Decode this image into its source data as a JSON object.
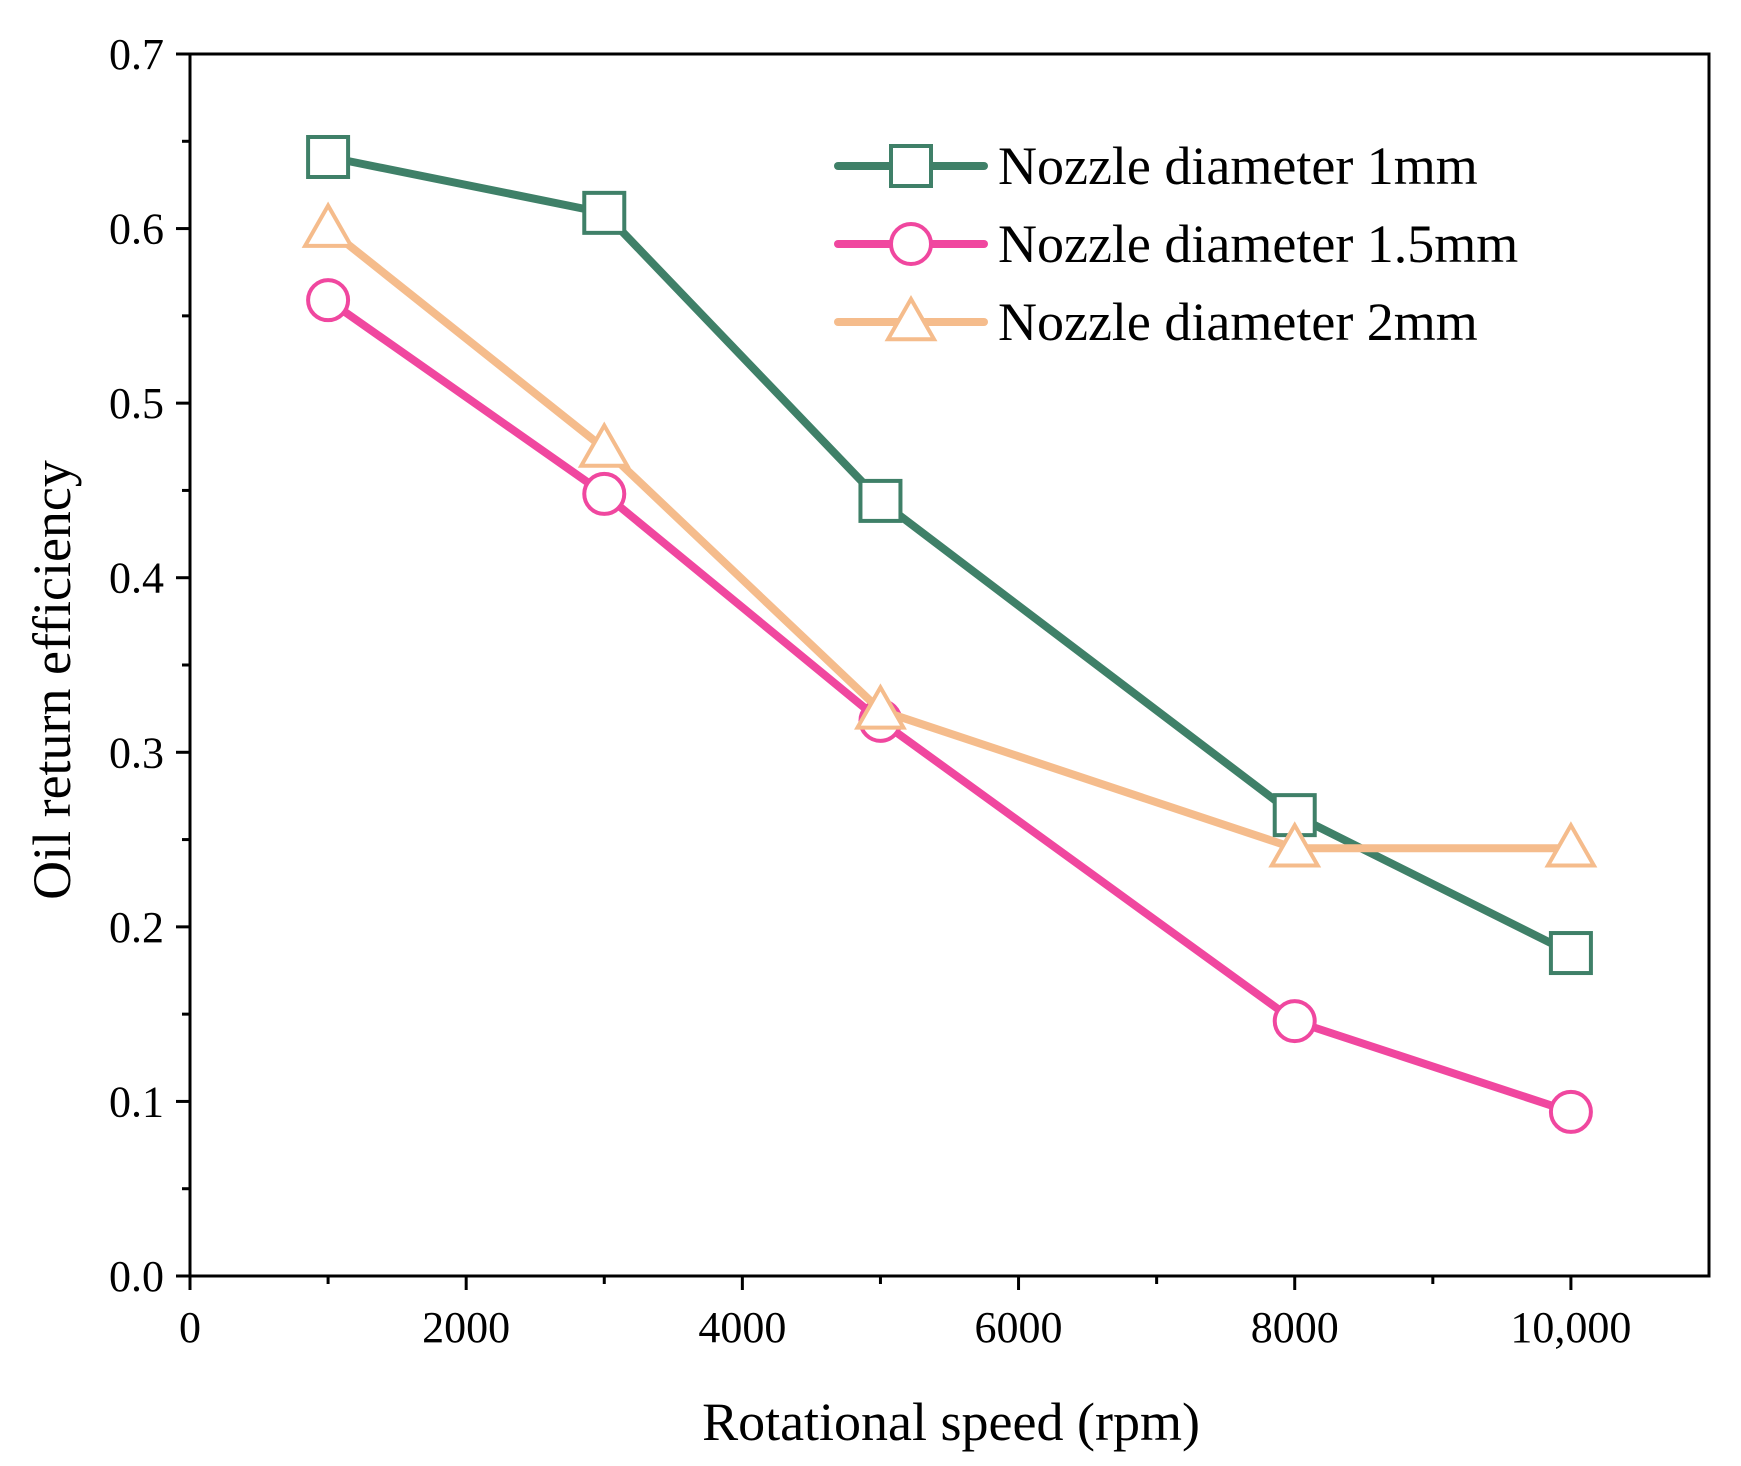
{
  "chart_data": {
    "type": "line",
    "title": "",
    "xlabel": "Rotational speed (rpm)",
    "ylabel": "Oil return efficiency",
    "xlim": [
      0,
      11000
    ],
    "ylim": [
      0,
      0.7
    ],
    "x_ticks": [
      0,
      2000,
      4000,
      6000,
      8000,
      10000
    ],
    "x_tick_labels": [
      "0",
      "2000",
      "4000",
      "6000",
      "8000",
      "10,000"
    ],
    "y_ticks": [
      0,
      0.1,
      0.2,
      0.3,
      0.4,
      0.5,
      0.6,
      0.7
    ],
    "y_tick_labels": [
      "0.0",
      "0.1",
      "0.2",
      "0.3",
      "0.4",
      "0.5",
      "0.6",
      "0.7"
    ],
    "grid": false,
    "legend_position": "top-right",
    "x": [
      1000,
      3000,
      5000,
      8000,
      10000
    ],
    "series": [
      {
        "name": "Nozzle diameter 1mm",
        "marker": "square",
        "color": "#3f8068",
        "values": [
          0.641,
          0.609,
          0.444,
          0.264,
          0.185
        ]
      },
      {
        "name": "Nozzle diameter 1.5mm",
        "marker": "circle",
        "color": "#f0479f",
        "values": [
          0.559,
          0.448,
          0.318,
          0.146,
          0.094
        ]
      },
      {
        "name": "Nozzle diameter 2mm",
        "marker": "triangle",
        "color": "#f5bc8c",
        "values": [
          0.6,
          0.474,
          0.324,
          0.245,
          0.245
        ]
      }
    ]
  }
}
